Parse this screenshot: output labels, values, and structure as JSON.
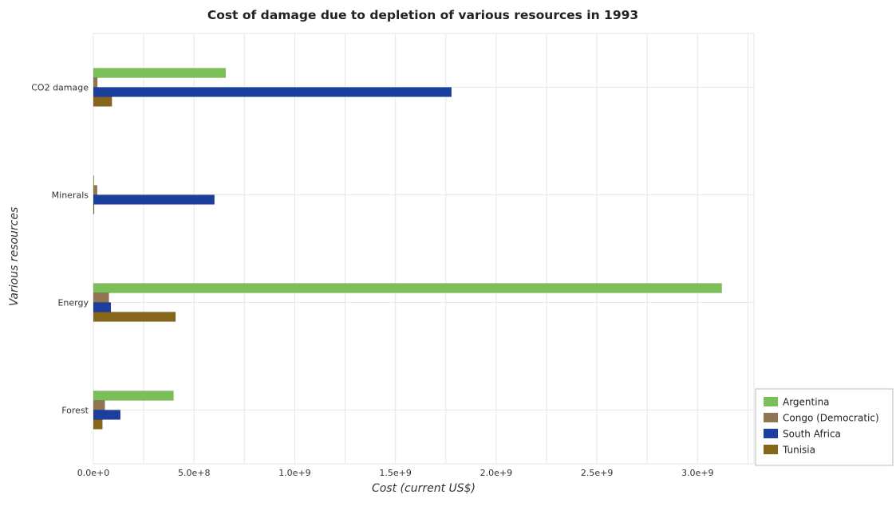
{
  "chart_data": {
    "type": "bar",
    "orientation": "horizontal",
    "title": "Cost of damage due to depletion of various resources in 1993",
    "xlabel": "Cost (current US$)",
    "ylabel": "Various resources",
    "categories": [
      "CO2 damage",
      "Minerals",
      "Energy",
      "Forest"
    ],
    "xlim": [
      0,
      3280000000
    ],
    "xticks": [
      0,
      500000000,
      1000000000,
      1500000000,
      2000000000,
      2500000000,
      3000000000
    ],
    "xtick_labels": [
      "0.0e+0",
      "5.0e+8",
      "1.0e+9",
      "1.5e+9",
      "2.0e+9",
      "2.5e+9",
      "3.0e+9"
    ],
    "grid": true,
    "legend_position": "bottom-right",
    "series": [
      {
        "name": "Argentina",
        "color": "#7cbf59",
        "values": [
          657000000,
          3000000,
          3120000000,
          398000000
        ]
      },
      {
        "name": "Congo (Democratic)",
        "color": "#917552",
        "values": [
          20000000,
          19000000,
          77000000,
          57000000
        ]
      },
      {
        "name": "South Africa",
        "color": "#1a3f9e",
        "values": [
          1778000000,
          601000000,
          87000000,
          134000000
        ]
      },
      {
        "name": "Tunisia",
        "color": "#85661a",
        "values": [
          92000000,
          1500000,
          408000000,
          45000000
        ]
      }
    ]
  }
}
